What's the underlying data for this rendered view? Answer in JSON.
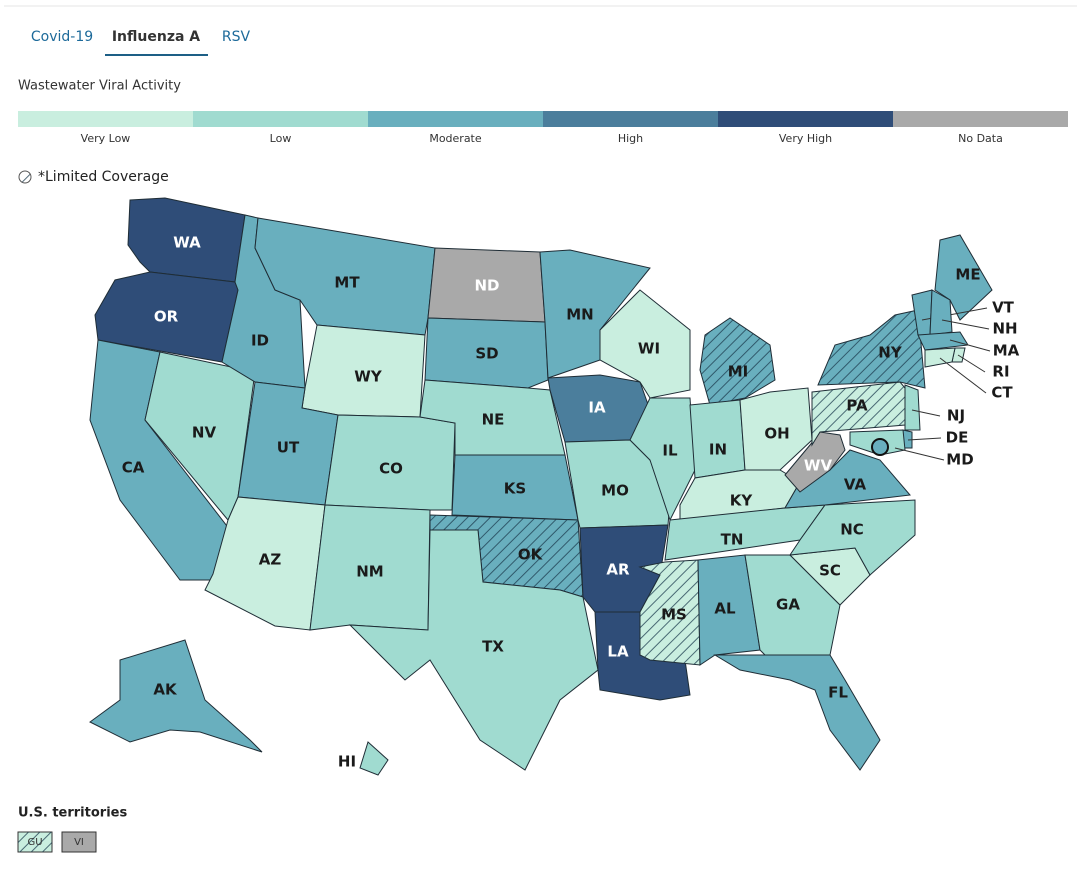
{
  "tabs": [
    "Covid-19",
    "Influenza A",
    "RSV"
  ],
  "active_tab": 1,
  "legend": {
    "title": "Wastewater Viral Activity",
    "levels": [
      {
        "label": "Very Low",
        "color": "#c9eedf"
      },
      {
        "label": "Low",
        "color": "#a0dbd0"
      },
      {
        "label": "Moderate",
        "color": "#69afbe"
      },
      {
        "label": "High",
        "color": "#4b7e9c"
      },
      {
        "label": "Very High",
        "color": "#2f4d78"
      },
      {
        "label": "No Data",
        "color": "#a9a9a9"
      }
    ]
  },
  "limited_coverage_label": "*Limited Coverage",
  "states": [
    {
      "abbr": "WA",
      "level": 4
    },
    {
      "abbr": "OR",
      "level": 4
    },
    {
      "abbr": "CA",
      "level": 2
    },
    {
      "abbr": "NV",
      "level": 1
    },
    {
      "abbr": "ID",
      "level": 2
    },
    {
      "abbr": "MT",
      "level": 2
    },
    {
      "abbr": "WY",
      "level": 0
    },
    {
      "abbr": "UT",
      "level": 2
    },
    {
      "abbr": "CO",
      "level": 1
    },
    {
      "abbr": "AZ",
      "level": 0
    },
    {
      "abbr": "NM",
      "level": 1
    },
    {
      "abbr": "ND",
      "level": 5
    },
    {
      "abbr": "SD",
      "level": 2
    },
    {
      "abbr": "NE",
      "level": 1
    },
    {
      "abbr": "KS",
      "level": 2
    },
    {
      "abbr": "OK",
      "level": 2,
      "limited": true
    },
    {
      "abbr": "TX",
      "level": 1
    },
    {
      "abbr": "MN",
      "level": 2
    },
    {
      "abbr": "IA",
      "level": 3
    },
    {
      "abbr": "MO",
      "level": 1
    },
    {
      "abbr": "AR",
      "level": 4
    },
    {
      "abbr": "LA",
      "level": 4
    },
    {
      "abbr": "WI",
      "level": 0
    },
    {
      "abbr": "IL",
      "level": 1
    },
    {
      "abbr": "MI",
      "level": 2,
      "limited": true
    },
    {
      "abbr": "IN",
      "level": 1
    },
    {
      "abbr": "OH",
      "level": 0
    },
    {
      "abbr": "KY",
      "level": 0
    },
    {
      "abbr": "TN",
      "level": 1
    },
    {
      "abbr": "MS",
      "level": 0,
      "limited": true
    },
    {
      "abbr": "AL",
      "level": 2
    },
    {
      "abbr": "GA",
      "level": 1
    },
    {
      "abbr": "FL",
      "level": 2
    },
    {
      "abbr": "SC",
      "level": 0
    },
    {
      "abbr": "NC",
      "level": 1
    },
    {
      "abbr": "VA",
      "level": 2
    },
    {
      "abbr": "WV",
      "level": 5
    },
    {
      "abbr": "PA",
      "level": 0,
      "limited": true
    },
    {
      "abbr": "NY",
      "level": 2,
      "limited": true
    },
    {
      "abbr": "ME",
      "level": 2
    },
    {
      "abbr": "VT",
      "level": 2
    },
    {
      "abbr": "NH",
      "level": 2
    },
    {
      "abbr": "MA",
      "level": 2
    },
    {
      "abbr": "RI",
      "level": 0
    },
    {
      "abbr": "CT",
      "level": 0
    },
    {
      "abbr": "NJ",
      "level": 1
    },
    {
      "abbr": "DE",
      "level": 2
    },
    {
      "abbr": "MD",
      "level": 1
    },
    {
      "abbr": "AK",
      "level": 2
    },
    {
      "abbr": "HI",
      "level": 1
    }
  ],
  "territories": {
    "title": "U.S. territories",
    "items": [
      {
        "abbr": "GU",
        "level": 0,
        "limited": true
      },
      {
        "abbr": "VI",
        "level": 5
      }
    ]
  }
}
